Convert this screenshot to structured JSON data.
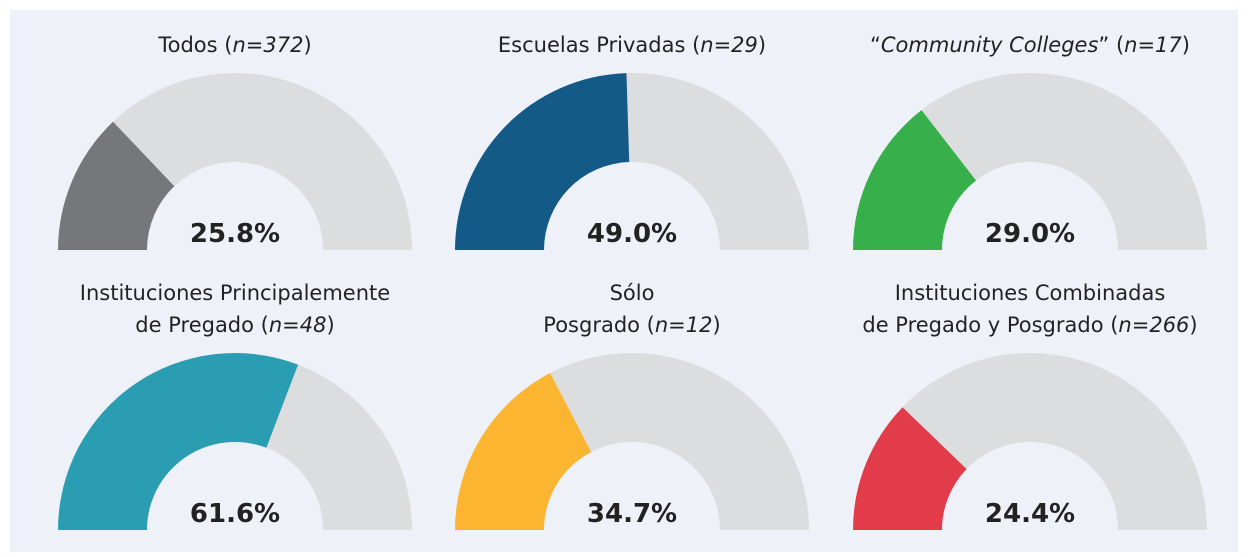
{
  "chart_data": [
    {
      "type": "gauge",
      "title_lines": [
        [
          {
            "text": "Todos ("
          },
          {
            "text": "n=372",
            "italic": true
          },
          {
            "text": ")"
          }
        ]
      ],
      "value": 25.8,
      "value_label": "25.8%",
      "color": "#76777a",
      "ylim": [
        0,
        100
      ]
    },
    {
      "type": "gauge",
      "title_lines": [
        [
          {
            "text": "Escuelas Privadas ("
          },
          {
            "text": "n=29",
            "italic": true
          },
          {
            "text": ")"
          }
        ]
      ],
      "value": 49.0,
      "value_label": "49.0%",
      "color": "#135a86",
      "ylim": [
        0,
        100
      ]
    },
    {
      "type": "gauge",
      "title_lines": [
        [
          {
            "text": "“"
          },
          {
            "text": "Community Colleges",
            "italic": true
          },
          {
            "text": "” ("
          },
          {
            "text": "n=17",
            "italic": true
          },
          {
            "text": ")"
          }
        ]
      ],
      "value": 29.0,
      "value_label": "29.0%",
      "color": "#37b04b",
      "ylim": [
        0,
        100
      ]
    },
    {
      "type": "gauge",
      "title_lines": [
        [
          {
            "text": "Instituciones Principalemente"
          }
        ],
        [
          {
            "text": "de Pregado ("
          },
          {
            "text": "n=48",
            "italic": true
          },
          {
            "text": ")"
          }
        ]
      ],
      "value": 61.6,
      "value_label": "61.6%",
      "color": "#2b9db2",
      "ylim": [
        0,
        100
      ]
    },
    {
      "type": "gauge",
      "title_lines": [
        [
          {
            "text": "Sólo"
          }
        ],
        [
          {
            "text": "Posgrado ("
          },
          {
            "text": "n=12",
            "italic": true
          },
          {
            "text": ")"
          }
        ]
      ],
      "value": 34.7,
      "value_label": "34.7%",
      "color": "#fbb531",
      "ylim": [
        0,
        100
      ]
    },
    {
      "type": "gauge",
      "title_lines": [
        [
          {
            "text": "Instituciones Combinadas"
          }
        ],
        [
          {
            "text": "de Pregado y Posgrado ("
          },
          {
            "text": "n=266",
            "italic": true
          },
          {
            "text": ")"
          }
        ]
      ],
      "value": 24.4,
      "value_label": "24.4%",
      "color": "#e23b4a",
      "ylim": [
        0,
        100
      ]
    }
  ]
}
